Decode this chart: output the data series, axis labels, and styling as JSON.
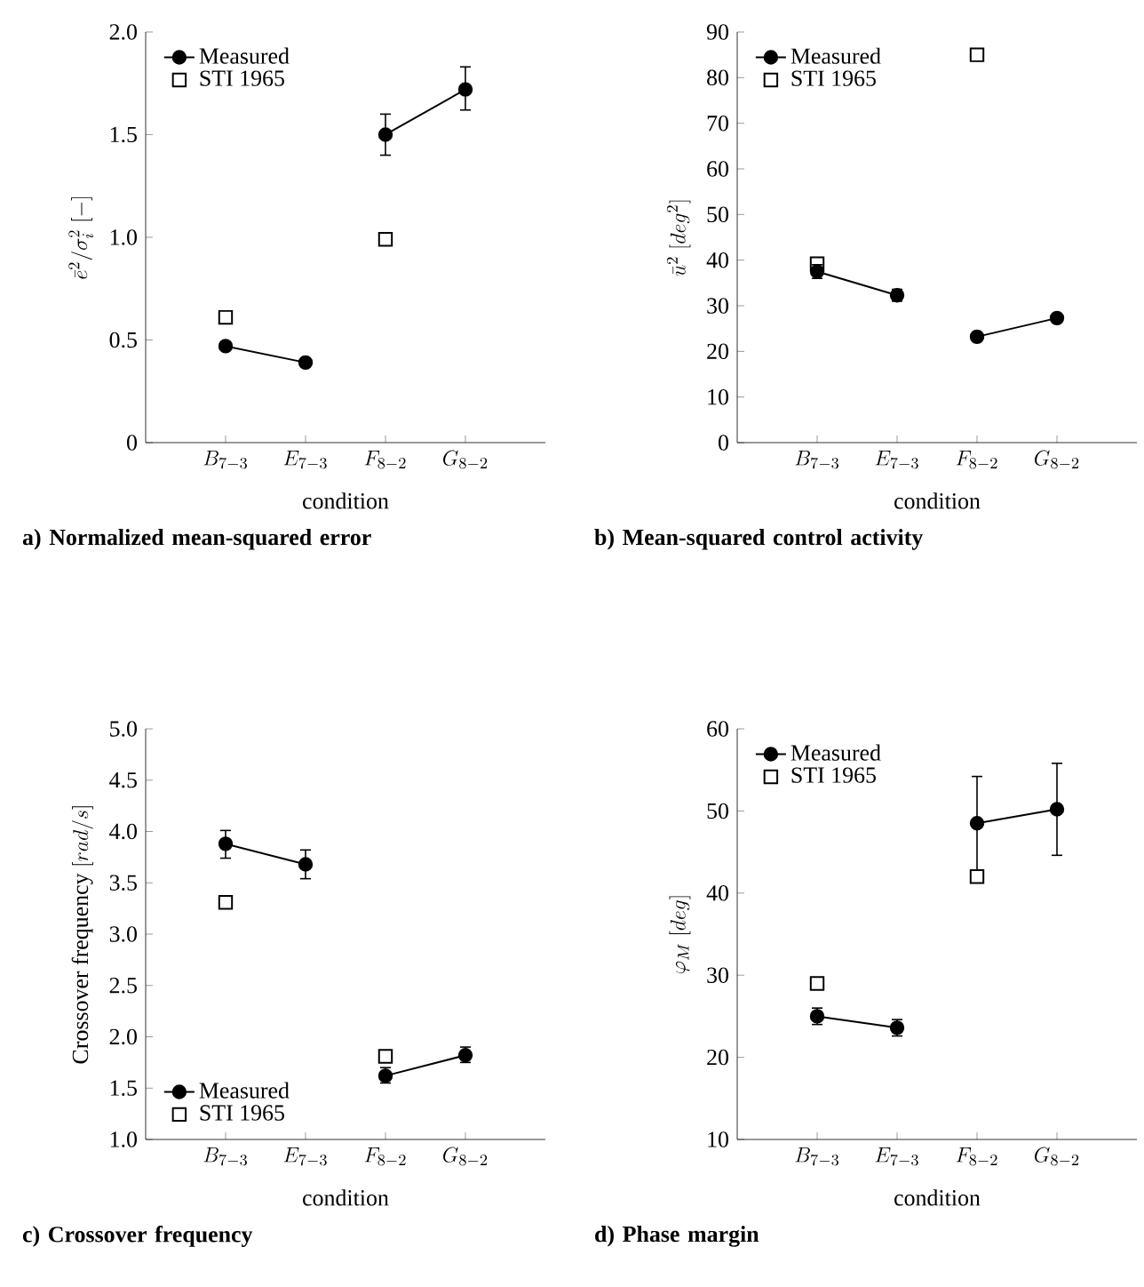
{
  "chart_data": [
    {
      "type": "line",
      "title": "a)  Normalized  mean-squared error",
      "xlabel": "condition",
      "ylabel": "\\bar{e}^2/\\sigma_i^2\\ [\\mathrm{-}]",
      "categories": [
        "B_{7-3}",
        "E_{7-3}",
        "F_{8-2}",
        "G_{8-2}"
      ],
      "ylim": [
        0,
        2
      ],
      "yticks": [
        0,
        0.5,
        {
          "value": 1,
          "label": "1.0"
        },
        1.5,
        {
          "value": 2,
          "label": "2.0"
        }
      ],
      "legend": "top left",
      "series": [
        {
          "name": "Measured",
          "marker": "circle",
          "color": "#000000",
          "values": [
            0.47,
            0.39,
            null,
            null
          ]
        },
        {
          "marker": "circle",
          "color": "#000000",
          "values": [
            null,
            null,
            1.5,
            1.72
          ],
          "errors": [
            null,
            null,
            [
              1.4,
              1.6
            ],
            [
              1.62,
              1.83
            ]
          ]
        },
        {
          "name": "STI 1965",
          "type": "scatter",
          "marker": "square",
          "color": "#000000",
          "values": [
            0.61,
            null,
            0.99,
            null
          ]
        }
      ]
    },
    {
      "type": "line",
      "title": "b) Mean-squared control activity",
      "xlabel": "condition",
      "ylabel": "\\bar{u}^2\\ [deg^2]",
      "categories": [
        "B_{7-3}",
        "E_{7-3}",
        "F_{8-2}",
        "G_{8-2}"
      ],
      "ylim": [
        0,
        90
      ],
      "yticks": [
        0,
        10,
        20,
        30,
        40,
        50,
        60,
        70,
        80,
        90
      ],
      "legend": "top left",
      "series": [
        {
          "name": "Measured",
          "marker": "circle",
          "color": "#000000",
          "values": [
            37.5,
            32.3,
            null,
            null
          ],
          "errors": [
            [
              36,
              39
            ],
            [
              31,
              33.6
            ],
            null,
            null
          ]
        },
        {
          "marker": "circle",
          "color": "#000000",
          "values": [
            null,
            null,
            23.2,
            27.3
          ]
        },
        {
          "name": "STI 1965",
          "type": "scatter",
          "marker": "square",
          "color": "#000000",
          "values": [
            39.2,
            null,
            85,
            null
          ]
        }
      ]
    },
    {
      "type": "line",
      "title": "c) Crossover frequency",
      "xlabel": "condition",
      "ylabel": "\\mathrm{Crossover\\ frequency}\\ [rad/s]",
      "categories": [
        "B_{7-3}",
        "E_{7-3}",
        "F_{8-2}",
        "G_{8-2}"
      ],
      "ylim": [
        1,
        5
      ],
      "yticks": [
        {
          "value": 1,
          "label": "1.0"
        },
        1.5,
        {
          "value": 2,
          "label": "2.0"
        },
        2.5,
        {
          "value": 3,
          "label": "3.0"
        },
        3.5,
        {
          "value": 4,
          "label": "4.0"
        },
        4.5,
        {
          "value": 5,
          "label": "5.0"
        }
      ],
      "legend": "bottom left",
      "series": [
        {
          "name": "Measured",
          "marker": "circle",
          "color": "#000000",
          "values": [
            3.88,
            3.68,
            null,
            null
          ],
          "errors": [
            [
              3.74,
              4.01
            ],
            [
              3.54,
              3.82
            ],
            null,
            null
          ]
        },
        {
          "marker": "circle",
          "color": "#000000",
          "values": [
            null,
            null,
            1.62,
            1.82
          ],
          "errors": [
            null,
            null,
            [
              1.55,
              1.7
            ],
            [
              1.75,
              1.9
            ]
          ]
        },
        {
          "name": "STI 1965",
          "type": "scatter",
          "marker": "square",
          "color": "#000000",
          "values": [
            3.31,
            null,
            1.81,
            null
          ]
        }
      ]
    },
    {
      "type": "line",
      "title": "d) Phase margin",
      "xlabel": "condition",
      "ylabel": "\\varphi_M\\ [deg]",
      "categories": [
        "B_{7-3}",
        "E_{7-3}",
        "F_{8-2}",
        "G_{8-2}"
      ],
      "ylim": [
        10,
        60
      ],
      "yticks": [
        10,
        20,
        30,
        40,
        50,
        60
      ],
      "legend": "top left",
      "series": [
        {
          "name": "Measured",
          "marker": "circle",
          "color": "#000000",
          "values": [
            25,
            23.6,
            null,
            null
          ],
          "errors": [
            [
              24,
              26
            ],
            [
              22.6,
              24.6
            ],
            null,
            null
          ]
        },
        {
          "marker": "circle",
          "color": "#000000",
          "values": [
            null,
            null,
            48.5,
            50.2
          ],
          "errors": [
            null,
            null,
            [
              42.8,
              54.2
            ],
            [
              44.6,
              55.8
            ]
          ]
        },
        {
          "name": "STI 1965",
          "type": "scatter",
          "marker": "square",
          "color": "#000000",
          "values": [
            29,
            null,
            42,
            null
          ]
        }
      ]
    }
  ]
}
